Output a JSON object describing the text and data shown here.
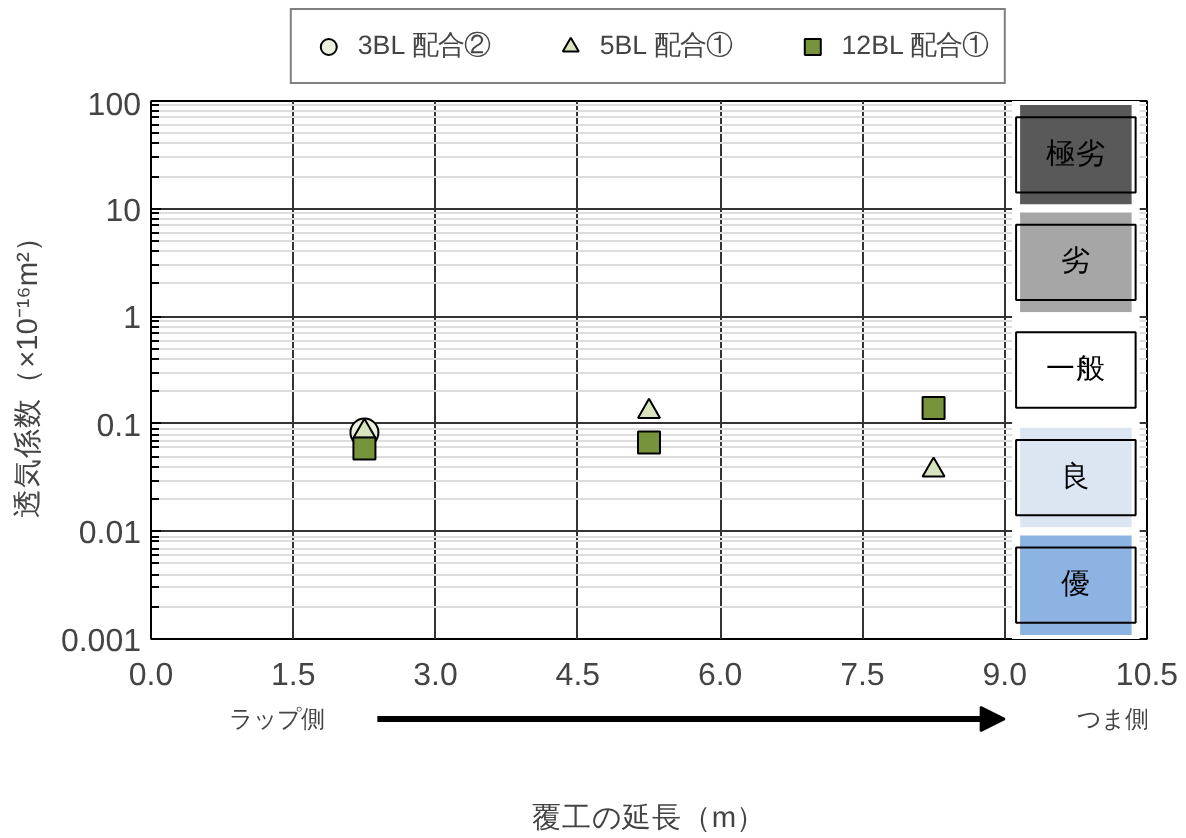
{
  "chart_data": {
    "type": "scatter",
    "xlabel": "覆工の延長（m）",
    "ylabel": "透気係数（×10⁻¹⁶m²）",
    "xlim": [
      0,
      10.5
    ],
    "xticks": [
      {
        "value": 0,
        "label": "0.0"
      },
      {
        "value": 1.5,
        "label": "1.5"
      },
      {
        "value": 3,
        "label": "3.0"
      },
      {
        "value": 4.5,
        "label": "4.5"
      },
      {
        "value": 6,
        "label": "6.0"
      },
      {
        "value": 7.5,
        "label": "7.5"
      },
      {
        "value": 9,
        "label": "9.0"
      },
      {
        "value": 10.5,
        "label": "10.5"
      }
    ],
    "ylim": [
      0.001,
      100
    ],
    "yticks": [
      0.001,
      0.01,
      0.1,
      1,
      10,
      100
    ],
    "log": "y",
    "grid": true,
    "legend": "top",
    "series": [
      {
        "name": "3BL 配合②",
        "marker": "circle",
        "color": "#ebf1de",
        "x": [
          2.25
        ],
        "values": [
          0.083
        ]
      },
      {
        "name": "5BL 配合①",
        "marker": "triangle",
        "color": "#d7e4bd",
        "x": [
          2.25,
          5.25,
          8.25
        ],
        "values": [
          0.085,
          0.13,
          0.037
        ]
      },
      {
        "name": "12BL 配合①",
        "marker": "square",
        "color": "#77933c",
        "x": [
          2.25,
          5.25,
          8.25
        ],
        "values": [
          0.059,
          0.067,
          0.14
        ]
      }
    ],
    "bands": [
      {
        "axis": "y",
        "from": 10,
        "to": 100,
        "label": "極劣",
        "color": "#595959"
      },
      {
        "axis": "y",
        "from": 1,
        "to": 10,
        "label": "劣",
        "color": "#a6a6a6"
      },
      {
        "axis": "y",
        "from": 0.1,
        "to": 1,
        "label": "一般",
        "color": "#ffffff"
      },
      {
        "axis": "y",
        "from": 0.01,
        "to": 0.1,
        "label": "良",
        "color": "#dce6f2"
      },
      {
        "axis": "y",
        "from": 0.001,
        "to": 0.01,
        "label": "優",
        "color": "#8db3e2"
      }
    ],
    "annotations": [
      "ラップ側",
      "つま側"
    ]
  }
}
